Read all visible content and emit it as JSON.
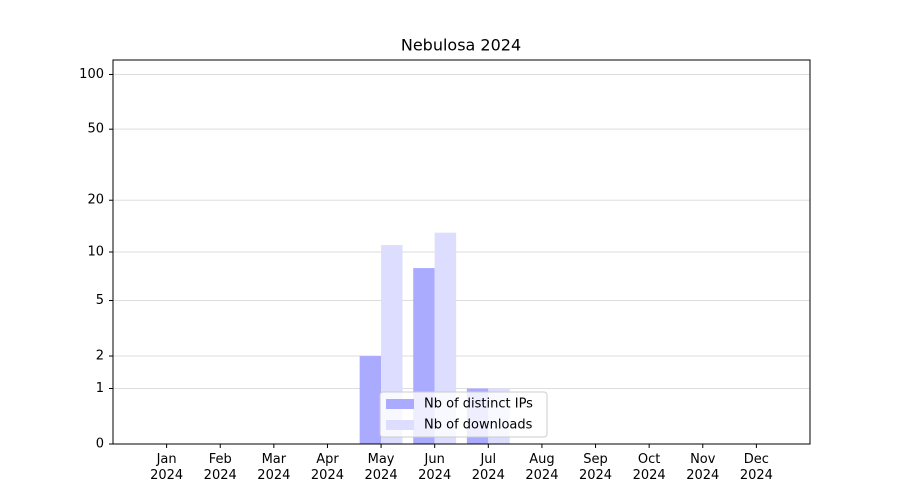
{
  "chart_data": {
    "type": "bar",
    "title": "Nebulosa 2024",
    "categories": [
      "Jan\n2024",
      "Feb\n2024",
      "Mar\n2024",
      "Apr\n2024",
      "May\n2024",
      "Jun\n2024",
      "Jul\n2024",
      "Aug\n2024",
      "Sep\n2024",
      "Oct\n2024",
      "Nov\n2024",
      "Dec\n2024"
    ],
    "series": [
      {
        "name": "Nb of distinct IPs",
        "color": "#aaaaff",
        "values": [
          0,
          0,
          0,
          0,
          2,
          8,
          1,
          0,
          0,
          0,
          0,
          0
        ]
      },
      {
        "name": "Nb of downloads",
        "color": "#ddddff",
        "values": [
          0,
          0,
          0,
          0,
          11,
          13,
          1,
          0,
          0,
          0,
          0,
          0
        ]
      }
    ],
    "yscale": "log1p",
    "ylim": [
      0,
      120
    ],
    "yticks": [
      0,
      1,
      2,
      5,
      10,
      20,
      50,
      100
    ],
    "grid": true,
    "legend": "lower center"
  }
}
